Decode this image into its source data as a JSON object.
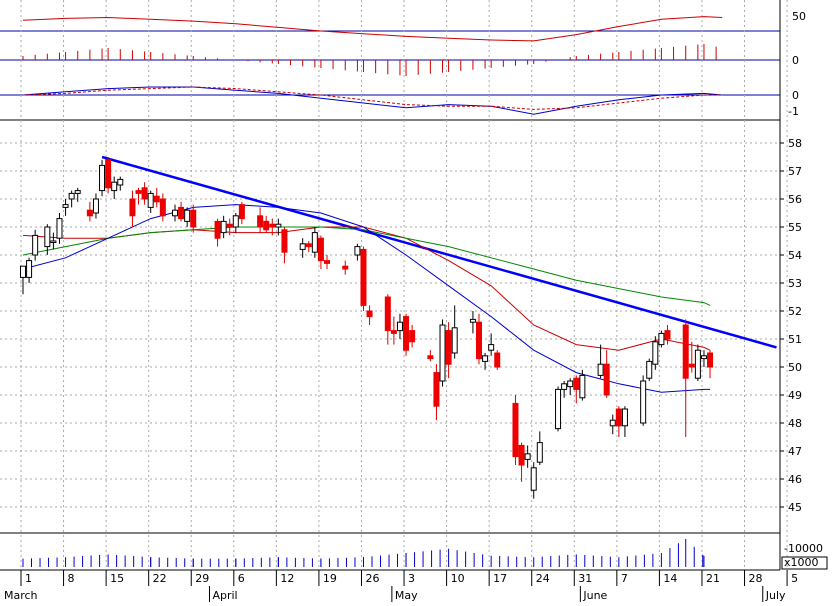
{
  "chart_data": [
    {
      "type": "line",
      "panel": "oscillator",
      "y_tick_labels": [
        "50"
      ],
      "series": [
        {
          "color": "#cc0000",
          "x": [
            "Mar 1",
            "Mar 8",
            "Mar 15",
            "Mar 22",
            "Mar 29",
            "Apr 5",
            "Apr 12",
            "Apr 19",
            "Apr 26",
            "May 3",
            "May 10",
            "May 17",
            "May 24",
            "May 31",
            "Jun 7",
            "Jun 14",
            "Jun 21",
            "Jun 24"
          ],
          "values": [
            62,
            64,
            65,
            63,
            61,
            58,
            54,
            50,
            47,
            44,
            42,
            40,
            39,
            46,
            55,
            63,
            66,
            65
          ]
        }
      ]
    },
    {
      "type": "bar",
      "panel": "histogram",
      "y_tick_labels": [
        "0"
      ],
      "series": [
        {
          "color": "#cc0000",
          "x": [
            "Mar 1",
            "Mar 8",
            "Mar 15",
            "Mar 22",
            "Mar 29",
            "Apr 5",
            "Apr 12",
            "Apr 19",
            "Apr 26",
            "May 3",
            "May 10",
            "May 17",
            "May 24",
            "May 31",
            "Jun 7",
            "Jun 14",
            "Jun 21",
            "Jun 24"
          ],
          "values": [
            1,
            2,
            3,
            2,
            1,
            0,
            -1,
            -2,
            -3,
            -4,
            -3,
            -2,
            -1,
            1,
            2,
            3,
            4,
            3
          ]
        }
      ]
    },
    {
      "type": "line",
      "panel": "macd",
      "y_tick_labels": [
        "0",
        "-1"
      ],
      "series": [
        {
          "color": "#0000cc",
          "x": [
            "Mar 1",
            "Mar 8",
            "Mar 15",
            "Mar 22",
            "Mar 29",
            "Apr 5",
            "Apr 12",
            "Apr 19",
            "Apr 26",
            "May 3",
            "May 10",
            "May 17",
            "May 24",
            "May 31",
            "Jun 7",
            "Jun 14",
            "Jun 21",
            "Jun 24"
          ],
          "values": [
            0.0,
            0.2,
            0.4,
            0.5,
            0.5,
            0.3,
            0.1,
            -0.2,
            -0.5,
            -0.8,
            -0.6,
            -0.7,
            -1.2,
            -0.7,
            -0.3,
            0.0,
            0.1,
            0.0
          ]
        },
        {
          "color": "#cc0000",
          "x": [
            "Mar 1",
            "Mar 8",
            "Mar 15",
            "Mar 22",
            "Mar 29",
            "Apr 5",
            "Apr 12",
            "Apr 19",
            "Apr 26",
            "May 3",
            "May 10",
            "May 17",
            "May 24",
            "May 31",
            "Jun 7",
            "Jun 14",
            "Jun 21",
            "Jun 24"
          ],
          "values": [
            0.0,
            0.1,
            0.3,
            0.4,
            0.5,
            0.4,
            0.2,
            0.0,
            -0.3,
            -0.6,
            -0.7,
            -0.7,
            -0.9,
            -0.8,
            -0.5,
            -0.2,
            0.0,
            0.0
          ]
        }
      ]
    },
    {
      "type": "candlestick",
      "panel": "price",
      "ylim": [
        44.5,
        58.5
      ],
      "y_tick_labels": [
        "58",
        "57",
        "56",
        "55",
        "54",
        "53",
        "52",
        "51",
        "50",
        "49",
        "48",
        "47",
        "46",
        "45"
      ],
      "x_tick_labels": [
        "1",
        "8",
        "15",
        "22",
        "29",
        "6",
        "12",
        "19",
        "26",
        "3",
        "10",
        "17",
        "24",
        "31",
        "7",
        "14",
        "21",
        "28",
        "5"
      ],
      "month_labels": [
        "March",
        "April",
        "May",
        "June",
        "July"
      ],
      "candles": [
        {
          "x": "Mar 1",
          "o": 53.2,
          "h": 53.6,
          "l": 52.6,
          "c": 53.6
        },
        {
          "x": "Mar 2",
          "o": 53.2,
          "h": 53.9,
          "l": 53.0,
          "c": 53.8
        },
        {
          "x": "Mar 3",
          "o": 54.0,
          "h": 54.9,
          "l": 53.8,
          "c": 54.7
        },
        {
          "x": "Mar 5",
          "o": 54.3,
          "h": 55.1,
          "l": 54.0,
          "c": 55.0
        },
        {
          "x": "Mar 6",
          "o": 54.5,
          "h": 54.8,
          "l": 54.2,
          "c": 54.5
        },
        {
          "x": "Mar 7",
          "o": 54.6,
          "h": 55.5,
          "l": 54.4,
          "c": 55.3
        },
        {
          "x": "Mar 8",
          "o": 55.7,
          "h": 56.0,
          "l": 55.4,
          "c": 55.8
        },
        {
          "x": "Mar 9",
          "o": 56.0,
          "h": 56.3,
          "l": 55.7,
          "c": 56.2
        },
        {
          "x": "Mar 10",
          "o": 56.2,
          "h": 56.4,
          "l": 55.9,
          "c": 56.3
        },
        {
          "x": "Mar 12",
          "o": 55.6,
          "h": 55.9,
          "l": 55.2,
          "c": 55.4
        },
        {
          "x": "Mar 13",
          "o": 55.5,
          "h": 56.2,
          "l": 55.3,
          "c": 56.0
        },
        {
          "x": "Mar 14",
          "o": 56.3,
          "h": 57.4,
          "l": 56.1,
          "c": 57.2
        },
        {
          "x": "Mar 15",
          "o": 57.4,
          "h": 57.5,
          "l": 56.2,
          "c": 56.4
        },
        {
          "x": "Mar 16",
          "o": 56.3,
          "h": 56.8,
          "l": 56.0,
          "c": 56.6
        },
        {
          "x": "Mar 17",
          "o": 56.5,
          "h": 56.8,
          "l": 56.3,
          "c": 56.7
        },
        {
          "x": "Mar 19",
          "o": 56.0,
          "h": 56.3,
          "l": 55.0,
          "c": 55.4
        },
        {
          "x": "Mar 20",
          "o": 56.3,
          "h": 56.4,
          "l": 55.8,
          "c": 56.2
        },
        {
          "x": "Mar 21",
          "o": 56.4,
          "h": 56.6,
          "l": 55.8,
          "c": 56.0
        },
        {
          "x": "Mar 22",
          "o": 55.7,
          "h": 56.3,
          "l": 55.5,
          "c": 56.2
        },
        {
          "x": "Mar 23",
          "o": 56.1,
          "h": 56.4,
          "l": 55.7,
          "c": 55.9
        },
        {
          "x": "Mar 24",
          "o": 56.0,
          "h": 56.2,
          "l": 55.2,
          "c": 55.4
        },
        {
          "x": "Mar 26",
          "o": 55.4,
          "h": 55.8,
          "l": 55.2,
          "c": 55.6
        },
        {
          "x": "Mar 27",
          "o": 55.7,
          "h": 55.9,
          "l": 55.2,
          "c": 55.3
        },
        {
          "x": "Mar 28",
          "o": 55.2,
          "h": 55.7,
          "l": 55.0,
          "c": 55.6
        },
        {
          "x": "Mar 29",
          "o": 55.6,
          "h": 55.8,
          "l": 54.8,
          "c": 55.0
        },
        {
          "x": "Apr 2",
          "o": 55.2,
          "h": 55.3,
          "l": 54.3,
          "c": 54.6
        },
        {
          "x": "Apr 3",
          "o": 54.8,
          "h": 55.4,
          "l": 54.6,
          "c": 55.2
        },
        {
          "x": "Apr 4",
          "o": 55.1,
          "h": 55.3,
          "l": 54.7,
          "c": 55.0
        },
        {
          "x": "Apr 5",
          "o": 55.0,
          "h": 55.5,
          "l": 54.8,
          "c": 55.4
        },
        {
          "x": "Apr 6",
          "o": 55.8,
          "h": 55.9,
          "l": 55.1,
          "c": 55.3
        },
        {
          "x": "Apr 9",
          "o": 55.4,
          "h": 55.7,
          "l": 54.8,
          "c": 55.0
        },
        {
          "x": "Apr 10",
          "o": 55.2,
          "h": 55.4,
          "l": 54.8,
          "c": 54.9
        },
        {
          "x": "Apr 11",
          "o": 55.1,
          "h": 55.3,
          "l": 54.7,
          "c": 55.0
        },
        {
          "x": "Apr 12",
          "o": 55.0,
          "h": 55.3,
          "l": 54.7,
          "c": 55.1
        },
        {
          "x": "Apr 13",
          "o": 54.9,
          "h": 55.0,
          "l": 53.7,
          "c": 54.1
        },
        {
          "x": "Apr 16",
          "o": 54.2,
          "h": 54.6,
          "l": 53.9,
          "c": 54.4
        },
        {
          "x": "Apr 17",
          "o": 54.4,
          "h": 54.5,
          "l": 54.1,
          "c": 54.3
        },
        {
          "x": "Apr 18",
          "o": 54.1,
          "h": 55.0,
          "l": 53.9,
          "c": 54.8
        },
        {
          "x": "Apr 19",
          "o": 54.6,
          "h": 54.7,
          "l": 53.5,
          "c": 53.8
        },
        {
          "x": "Apr 20",
          "o": 53.8,
          "h": 54.0,
          "l": 53.5,
          "c": 53.7
        },
        {
          "x": "Apr 23",
          "o": 53.6,
          "h": 53.8,
          "l": 53.3,
          "c": 53.5
        },
        {
          "x": "Apr 25",
          "o": 54.0,
          "h": 54.4,
          "l": 53.8,
          "c": 54.3
        },
        {
          "x": "Apr 26",
          "o": 54.2,
          "h": 54.3,
          "l": 52.0,
          "c": 52.2
        },
        {
          "x": "Apr 27",
          "o": 52.0,
          "h": 52.2,
          "l": 51.5,
          "c": 51.8
        },
        {
          "x": "Apr 30",
          "o": 52.5,
          "h": 52.6,
          "l": 50.8,
          "c": 51.3
        },
        {
          "x": "May 1",
          "o": 51.3,
          "h": 51.8,
          "l": 50.8,
          "c": 51.2
        },
        {
          "x": "May 2",
          "o": 51.3,
          "h": 51.9,
          "l": 51.0,
          "c": 51.6
        },
        {
          "x": "May 3",
          "o": 51.8,
          "h": 51.9,
          "l": 50.4,
          "c": 50.6
        },
        {
          "x": "May 4",
          "o": 51.3,
          "h": 51.5,
          "l": 50.7,
          "c": 50.9
        },
        {
          "x": "May 7",
          "o": 50.4,
          "h": 50.6,
          "l": 50.2,
          "c": 50.3
        },
        {
          "x": "May 8",
          "o": 49.8,
          "h": 50.1,
          "l": 48.1,
          "c": 48.6
        },
        {
          "x": "May 9",
          "o": 49.5,
          "h": 51.7,
          "l": 49.3,
          "c": 51.5
        },
        {
          "x": "May 10",
          "o": 51.3,
          "h": 51.6,
          "l": 49.6,
          "c": 50.1
        },
        {
          "x": "May 11",
          "o": 50.5,
          "h": 52.2,
          "l": 50.3,
          "c": 51.4
        },
        {
          "x": "May 14",
          "o": 51.6,
          "h": 52.0,
          "l": 51.2,
          "c": 51.7
        },
        {
          "x": "May 15",
          "o": 51.6,
          "h": 51.9,
          "l": 50.1,
          "c": 50.3
        },
        {
          "x": "May 16",
          "o": 50.2,
          "h": 50.5,
          "l": 49.9,
          "c": 50.4
        },
        {
          "x": "May 17",
          "o": 50.6,
          "h": 51.2,
          "l": 50.4,
          "c": 50.8
        },
        {
          "x": "May 18",
          "o": 50.5,
          "h": 50.6,
          "l": 49.9,
          "c": 50.0
        },
        {
          "x": "May 21",
          "o": 48.7,
          "h": 49.0,
          "l": 46.5,
          "c": 46.8
        },
        {
          "x": "May 22",
          "o": 47.2,
          "h": 47.3,
          "l": 45.9,
          "c": 46.5
        },
        {
          "x": "May 23",
          "o": 46.7,
          "h": 47.2,
          "l": 46.4,
          "c": 46.9
        },
        {
          "x": "May 24",
          "o": 45.6,
          "h": 46.6,
          "l": 45.3,
          "c": 46.4
        },
        {
          "x": "May 25",
          "o": 46.6,
          "h": 47.7,
          "l": 46.5,
          "c": 47.3
        },
        {
          "x": "May 28",
          "o": 47.8,
          "h": 49.3,
          "l": 47.7,
          "c": 49.2
        },
        {
          "x": "May 29",
          "o": 49.2,
          "h": 49.5,
          "l": 48.9,
          "c": 49.4
        },
        {
          "x": "May 30",
          "o": 49.3,
          "h": 49.6,
          "l": 49.0,
          "c": 49.5
        },
        {
          "x": "May 31",
          "o": 49.6,
          "h": 49.7,
          "l": 48.7,
          "c": 49.2
        },
        {
          "x": "Jun 1",
          "o": 48.9,
          "h": 49.9,
          "l": 48.8,
          "c": 49.7
        },
        {
          "x": "Jun 4",
          "o": 49.7,
          "h": 50.8,
          "l": 49.6,
          "c": 50.1
        },
        {
          "x": "Jun 5",
          "o": 50.1,
          "h": 50.6,
          "l": 48.9,
          "c": 49.0
        },
        {
          "x": "Jun 6",
          "o": 47.9,
          "h": 48.3,
          "l": 47.6,
          "c": 48.1
        },
        {
          "x": "Jun 7",
          "o": 48.5,
          "h": 48.6,
          "l": 47.5,
          "c": 47.9
        },
        {
          "x": "Jun 8",
          "o": 47.9,
          "h": 48.6,
          "l": 47.5,
          "c": 48.5
        },
        {
          "x": "Jun 11",
          "o": 48.0,
          "h": 49.7,
          "l": 47.9,
          "c": 49.5
        },
        {
          "x": "Jun 12",
          "o": 49.6,
          "h": 50.3,
          "l": 49.5,
          "c": 50.2
        },
        {
          "x": "Jun 13",
          "o": 50.1,
          "h": 51.1,
          "l": 49.9,
          "c": 50.9
        },
        {
          "x": "Jun 14",
          "o": 50.8,
          "h": 51.3,
          "l": 50.7,
          "c": 51.2
        },
        {
          "x": "Jun 15",
          "o": 51.3,
          "h": 51.5,
          "l": 50.8,
          "c": 51.0
        },
        {
          "x": "Jun 18",
          "o": 51.5,
          "h": 51.7,
          "l": 47.5,
          "c": 49.6
        },
        {
          "x": "Jun 19",
          "o": 50.1,
          "h": 50.9,
          "l": 49.8,
          "c": 50.0
        },
        {
          "x": "Jun 20",
          "o": 49.6,
          "h": 50.8,
          "l": 49.5,
          "c": 50.6
        },
        {
          "x": "Jun 21",
          "o": 50.3,
          "h": 50.6,
          "l": 50.0,
          "c": 50.4
        },
        {
          "x": "Jun 22",
          "o": 50.5,
          "h": 50.6,
          "l": 49.6,
          "c": 50.0
        }
      ],
      "lines": [
        {
          "name_color": "#0000ff",
          "style": "trendline",
          "points": [
            [
              "Mar 14",
              57.5
            ],
            [
              "Jun 28",
              50.3
            ]
          ]
        },
        {
          "color": "#cc0000",
          "x": [
            "Mar 1",
            "Mar 8",
            "Mar 15",
            "Mar 22",
            "Mar 29",
            "Apr 5",
            "Apr 12",
            "Apr 19",
            "Apr 26",
            "May 3",
            "May 10",
            "May 17",
            "May 24",
            "May 31",
            "Jun 7",
            "Jun 14",
            "Jun 21",
            "Jun 22"
          ],
          "values": [
            54.7,
            54.6,
            54.6,
            54.8,
            54.9,
            54.8,
            54.8,
            55.0,
            55.0,
            54.6,
            53.8,
            52.9,
            51.5,
            50.8,
            50.6,
            51.0,
            50.7,
            50.6
          ]
        },
        {
          "color": "#008800",
          "x": [
            "Mar 1",
            "Mar 8",
            "Mar 15",
            "Mar 22",
            "Mar 29",
            "Apr 5",
            "Apr 12",
            "Apr 19",
            "Apr 26",
            "May 3",
            "May 10",
            "May 17",
            "May 24",
            "May 31",
            "Jun 7",
            "Jun 14",
            "Jun 21",
            "Jun 22"
          ],
          "values": [
            54.0,
            54.3,
            54.6,
            54.8,
            54.9,
            55.0,
            55.0,
            55.0,
            54.9,
            54.6,
            54.3,
            53.9,
            53.5,
            53.1,
            52.8,
            52.5,
            52.3,
            52.2
          ]
        },
        {
          "color": "#0000cc",
          "x": [
            "Mar 1",
            "Mar 8",
            "Mar 15",
            "Mar 22",
            "Mar 29",
            "Apr 5",
            "Apr 12",
            "Apr 19",
            "Apr 26",
            "May 3",
            "May 10",
            "May 17",
            "May 24",
            "May 31",
            "Jun 7",
            "Jun 14",
            "Jun 21",
            "Jun 22"
          ],
          "values": [
            53.5,
            53.9,
            54.6,
            55.3,
            55.7,
            55.8,
            55.7,
            55.5,
            55.0,
            54.0,
            52.9,
            51.8,
            50.6,
            49.8,
            49.4,
            49.1,
            49.2,
            49.2
          ]
        }
      ]
    },
    {
      "type": "bar",
      "panel": "volume",
      "y_tick_labels": [
        "10000"
      ],
      "y_multiplier_label": "x1000",
      "color": "#0000cc",
      "x": [
        "Mar 1",
        "Mar 8",
        "Mar 15",
        "Mar 22",
        "Mar 29",
        "Apr 5",
        "Apr 12",
        "Apr 19",
        "Apr 26",
        "May 3",
        "May 10",
        "May 17",
        "May 24",
        "May 31",
        "Jun 7",
        "Jun 14",
        "Jun 18",
        "Jun 21"
      ],
      "values": [
        3000,
        3500,
        4500,
        3500,
        3000,
        3000,
        3500,
        3000,
        3500,
        5000,
        6500,
        4000,
        3500,
        4500,
        3500,
        5000,
        10000,
        4000
      ]
    }
  ]
}
